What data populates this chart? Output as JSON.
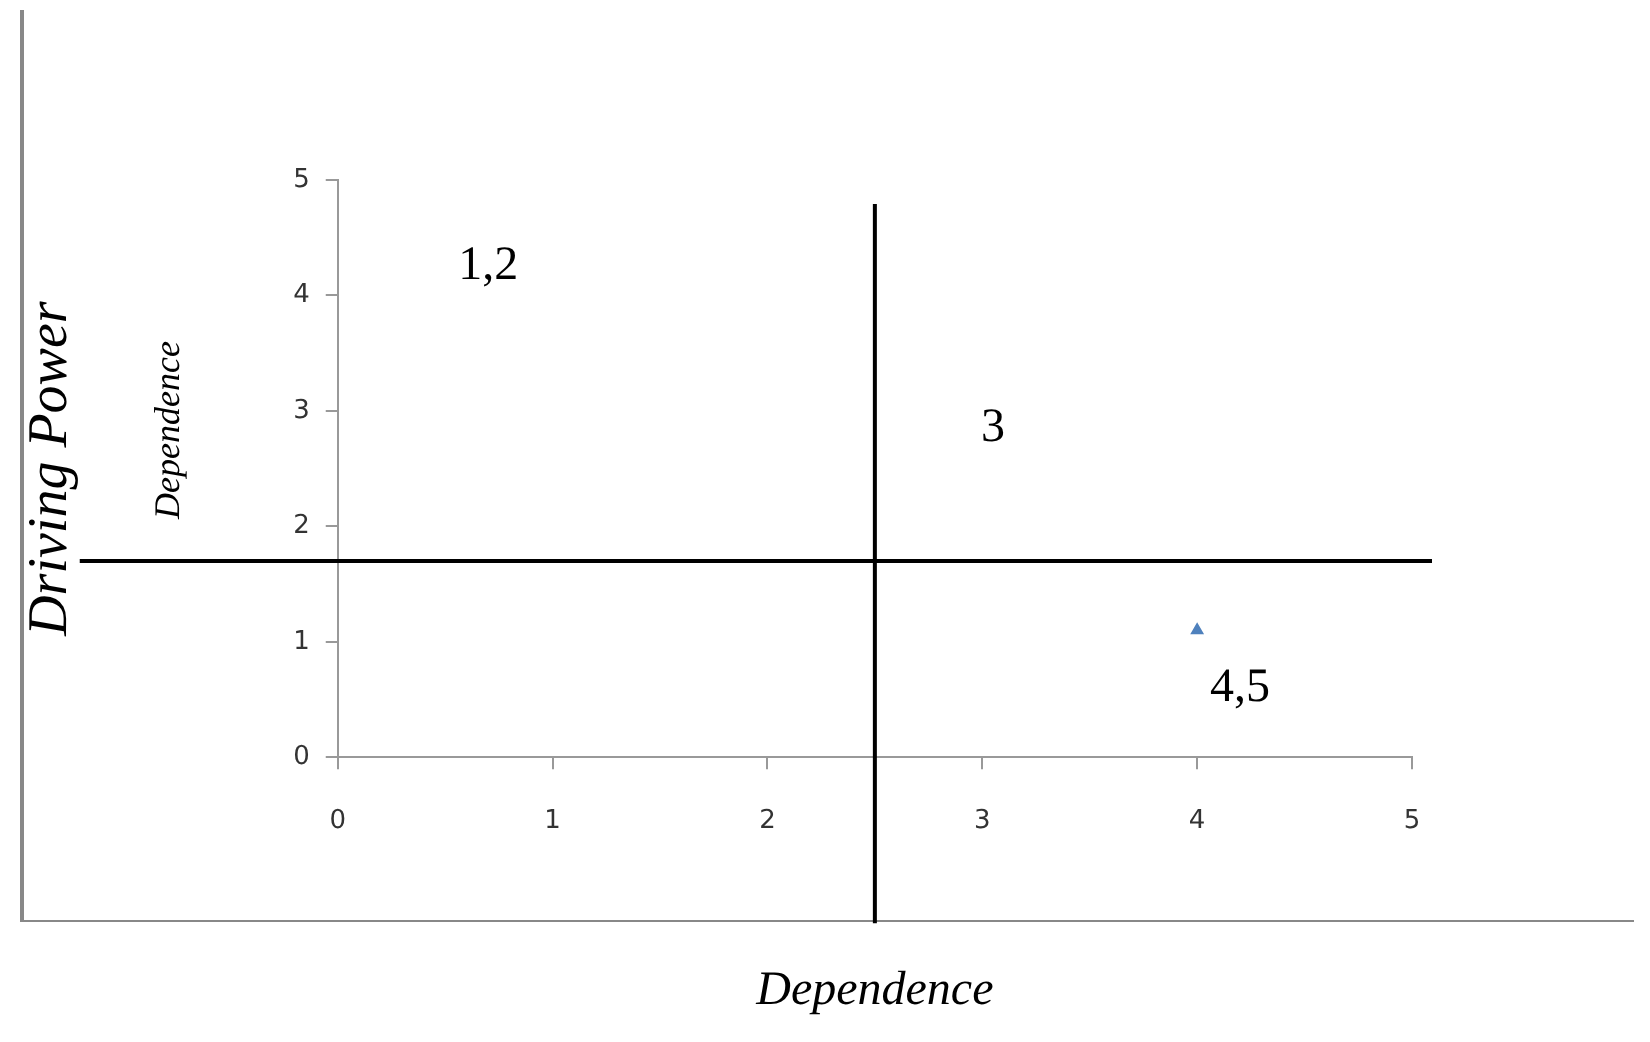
{
  "chart_data": {
    "type": "scatter",
    "xlabel": "Dependence",
    "ylabel": "Driving Power",
    "series": [
      {
        "color": "#4f81bd",
        "x": [
          4
        ],
        "values": [
          1.1
        ]
      }
    ],
    "marker": "triangle",
    "xlim": [
      0,
      5
    ],
    "xticks": [
      0,
      1,
      2,
      3,
      4,
      5
    ],
    "ylim": [
      0,
      5
    ],
    "yticks": [
      0,
      1,
      2,
      3,
      4,
      5
    ],
    "grid": false,
    "legend": false,
    "ref_lines": [
      {
        "axis": "x",
        "value": 2.5,
        "color": "#000000"
      },
      {
        "axis": "y",
        "value": 1.7,
        "color": "#000000"
      }
    ],
    "annotations": [
      "Dependence",
      "1,2",
      "3",
      "4,5"
    ]
  }
}
